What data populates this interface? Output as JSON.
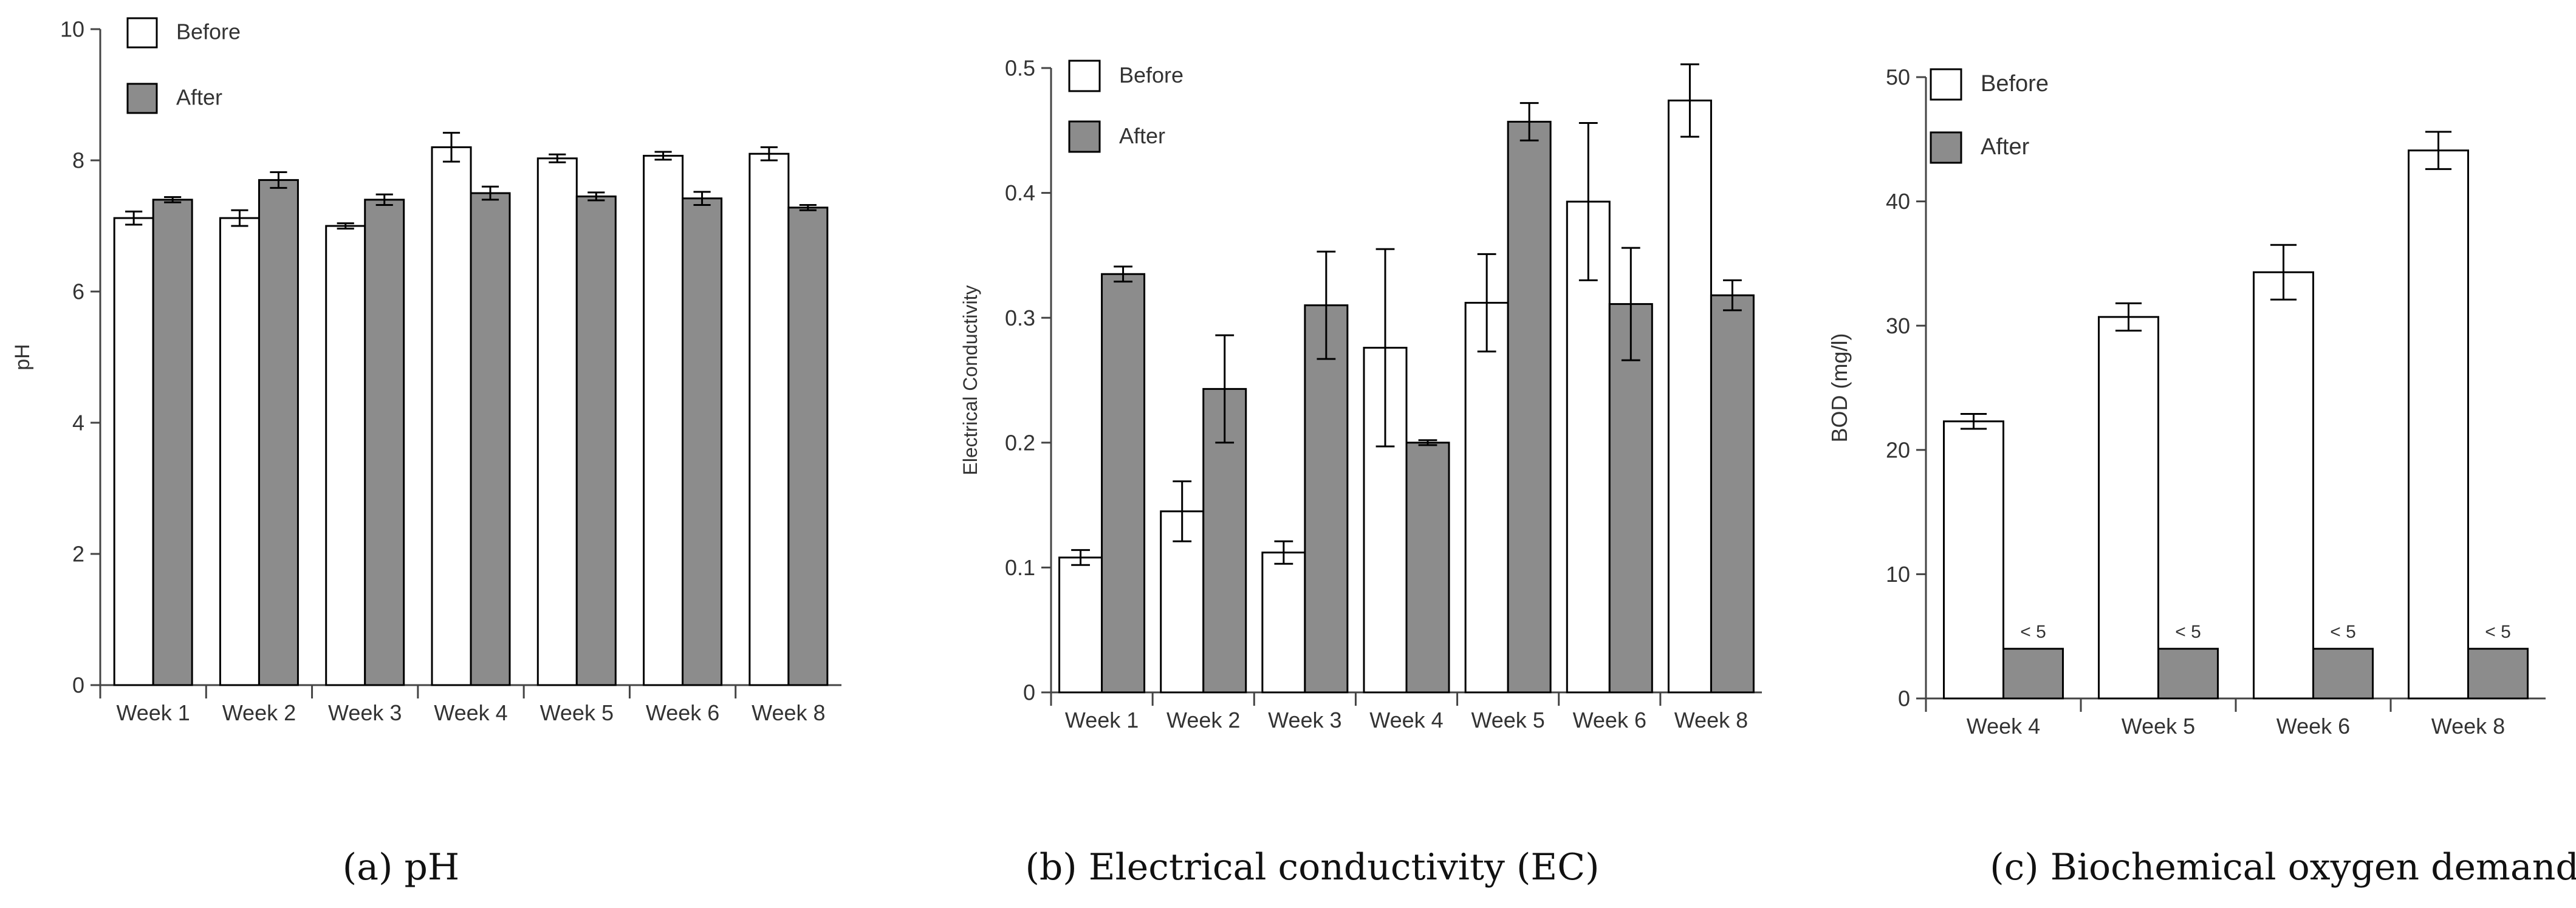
{
  "captions": {
    "a": "(a) pH",
    "b": "(b) Electrical conductivity (EC)",
    "c": "(c) Biochemical oxygen demand"
  },
  "colors": {
    "before": "#ffffff",
    "after": "#8c8c8c",
    "stroke": "#000000",
    "axis": "#444444"
  },
  "chart_data": [
    {
      "id": "ph",
      "type": "bar",
      "title": "",
      "xlabel": "",
      "ylabel": "pH",
      "categories": [
        "Week 1",
        "Week 2",
        "Week 3",
        "Week 4",
        "Week 5",
        "Week 6",
        "Week 8"
      ],
      "ylim": [
        0,
        10
      ],
      "yticks": [
        0,
        2,
        4,
        6,
        8,
        10
      ],
      "legend": {
        "position": "top-left"
      },
      "series": [
        {
          "name": "Before",
          "values": [
            7.12,
            7.12,
            7.0,
            8.2,
            8.03,
            8.07,
            8.1
          ],
          "errors": [
            0.1,
            0.12,
            0.04,
            0.22,
            0.06,
            0.06,
            0.1
          ]
        },
        {
          "name": "After",
          "values": [
            7.4,
            7.7,
            7.4,
            7.5,
            7.45,
            7.42,
            7.28
          ],
          "errors": [
            0.04,
            0.12,
            0.08,
            0.1,
            0.06,
            0.1,
            0.04
          ]
        }
      ]
    },
    {
      "id": "ec",
      "type": "bar",
      "title": "",
      "xlabel": "",
      "ylabel": "Electrical Conductivity",
      "categories": [
        "Week 1",
        "Week 2",
        "Week 3",
        "Week 4",
        "Week 5",
        "Week 6",
        "Week 8"
      ],
      "ylim": [
        0,
        0.5
      ],
      "yticks": [
        0,
        0.1,
        0.2,
        0.3,
        0.4,
        0.5
      ],
      "legend": {
        "position": "top-left"
      },
      "series": [
        {
          "name": "Before",
          "values": [
            0.108,
            0.145,
            0.112,
            0.276,
            0.312,
            0.393,
            0.474
          ],
          "errors": [
            0.006,
            0.024,
            0.009,
            0.079,
            0.039,
            0.063,
            0.029
          ]
        },
        {
          "name": "After",
          "values": [
            0.335,
            0.243,
            0.31,
            0.2,
            0.457,
            0.311,
            0.318
          ],
          "errors": [
            0.006,
            0.043,
            0.043,
            0.002,
            0.015,
            0.045,
            0.012
          ]
        }
      ]
    },
    {
      "id": "bod",
      "type": "bar",
      "title": "",
      "xlabel": "",
      "ylabel": "BOD (mg/l)",
      "categories": [
        "Week 4",
        "Week 5",
        "Week 6",
        "Week 8"
      ],
      "ylim": [
        0,
        50
      ],
      "yticks": [
        0,
        10,
        20,
        30,
        40,
        50
      ],
      "legend": {
        "position": "top-left"
      },
      "series": [
        {
          "name": "Before",
          "values": [
            22.3,
            30.7,
            34.3,
            44.1
          ],
          "errors": [
            0.6,
            1.1,
            2.2,
            1.5
          ]
        },
        {
          "name": "After",
          "values": [
            4,
            4,
            4,
            4
          ],
          "errors": [
            0,
            0,
            0,
            0
          ],
          "labels": [
            "< 5",
            "< 5",
            "< 5",
            "< 5"
          ]
        }
      ]
    }
  ]
}
